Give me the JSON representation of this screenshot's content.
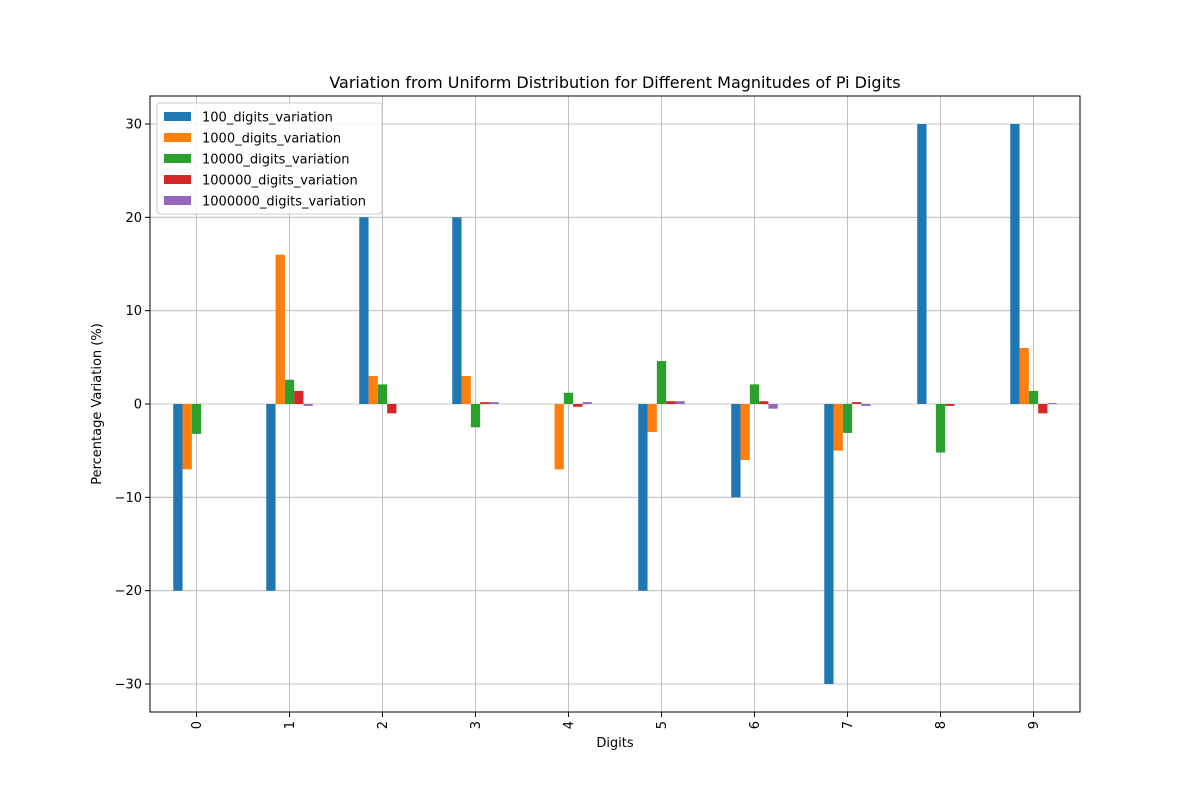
{
  "chart_data": {
    "type": "bar",
    "title": "Variation from Uniform Distribution for Different Magnitudes of Pi Digits",
    "xlabel": "Digits",
    "ylabel": "Percentage Variation (%)",
    "categories": [
      "0",
      "1",
      "2",
      "3",
      "4",
      "5",
      "6",
      "7",
      "8",
      "9"
    ],
    "ylim": [
      -33,
      33
    ],
    "yticks": [
      -30,
      -20,
      -10,
      0,
      10,
      20,
      30
    ],
    "grid": true,
    "legend_position": "top-left",
    "series": [
      {
        "name": "100_digits_variation",
        "color": "#1f77b4",
        "values": [
          -20,
          -20,
          20,
          20,
          0,
          -20,
          -10,
          -30,
          30,
          30
        ]
      },
      {
        "name": "1000_digits_variation",
        "color": "#ff7f0e",
        "values": [
          -7,
          16,
          3,
          3,
          -7,
          -3,
          -6,
          -5,
          0,
          6
        ]
      },
      {
        "name": "10000_digits_variation",
        "color": "#2ca02c",
        "values": [
          -3.2,
          2.6,
          2.1,
          -2.5,
          1.2,
          4.6,
          2.1,
          -3.1,
          -5.2,
          1.4
        ]
      },
      {
        "name": "100000_digits_variation",
        "color": "#d62728",
        "values": [
          0.0,
          1.4,
          -1.0,
          0.2,
          -0.3,
          0.3,
          0.3,
          0.2,
          -0.2,
          -1.0
        ]
      },
      {
        "name": "1000000_digits_variation",
        "color": "#9467bd",
        "values": [
          0.0,
          -0.2,
          0.0,
          0.2,
          0.2,
          0.3,
          -0.5,
          -0.2,
          0.0,
          0.1
        ]
      }
    ]
  }
}
